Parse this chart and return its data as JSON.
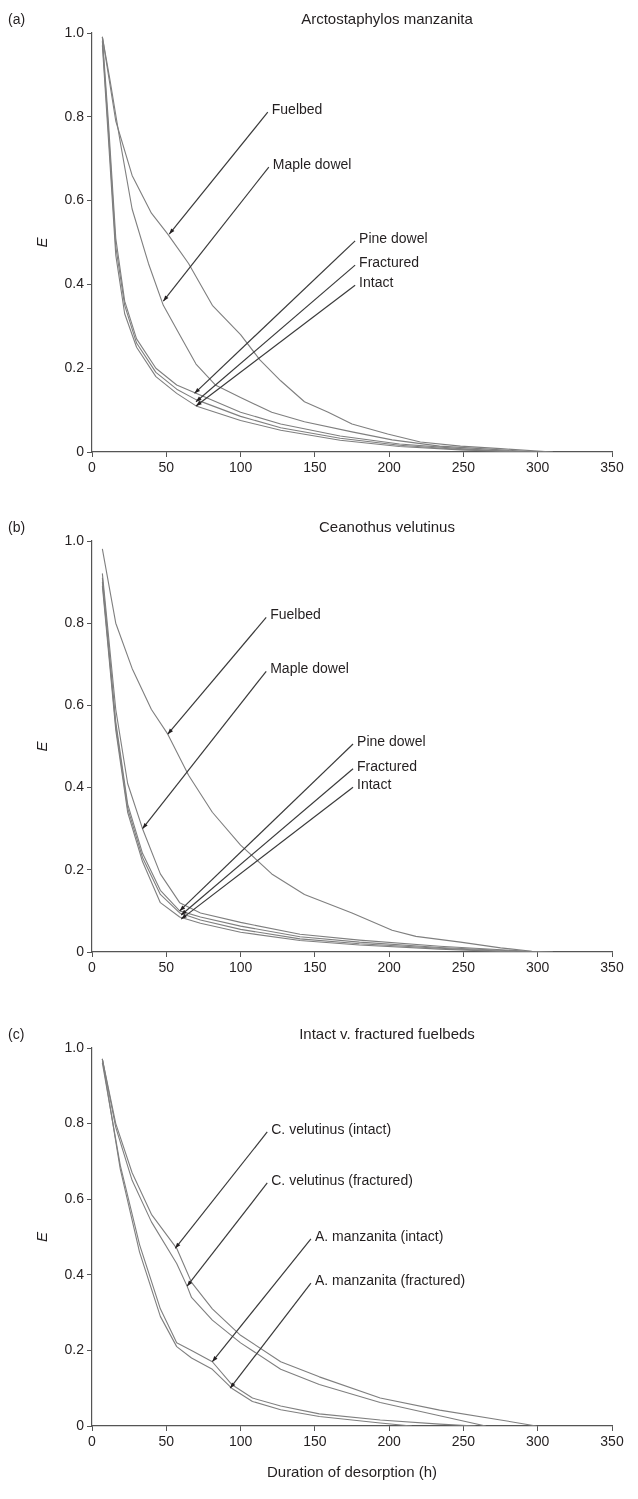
{
  "chart_data": [
    {
      "type": "line",
      "title": "Arctostaphylos manzanita",
      "ylabel": "E",
      "xlim": [
        0,
        350
      ],
      "xticks": [
        0,
        50,
        100,
        150,
        200,
        250,
        300,
        350
      ],
      "ylim": [
        0,
        1
      ],
      "yticks": [
        {
          "value": 0,
          "label": "0"
        },
        {
          "value": 0.2,
          "label": "0.2"
        },
        {
          "value": 0.4,
          "label": "0.4"
        },
        {
          "value": 0.6,
          "label": "0.6"
        },
        {
          "value": 0.8,
          "label": "0.8"
        },
        {
          "value": 1,
          "label": "1.0"
        }
      ],
      "grid": false,
      "legend": false,
      "marker": "none",
      "line_style": "solid",
      "series": [
        {
          "color": "#7f7f7f",
          "x": [
            7,
            16,
            27,
            40,
            51,
            65,
            81,
            100,
            113,
            127,
            143,
            159,
            175,
            199,
            221,
            248,
            275,
            310
          ],
          "values": [
            0.99,
            0.79,
            0.66,
            0.57,
            0.52,
            0.45,
            0.35,
            0.28,
            0.22,
            0.17,
            0.12,
            0.095,
            0.067,
            0.043,
            0.024,
            0.014,
            0.008,
            0
          ]
        },
        {
          "color": "#7f7f7f",
          "x": [
            7,
            12,
            19,
            27,
            38,
            48,
            59,
            70,
            83,
            100,
            121,
            143,
            175,
            202,
            234,
            275,
            302
          ],
          "values": [
            0.99,
            0.89,
            0.74,
            0.58,
            0.45,
            0.35,
            0.28,
            0.21,
            0.16,
            0.13,
            0.095,
            0.072,
            0.048,
            0.029,
            0.014,
            0.005,
            0
          ]
        },
        {
          "color": "#7f7f7f",
          "x": [
            7,
            11,
            16,
            22,
            30,
            43,
            57,
            70,
            100,
            127,
            167,
            207,
            248,
            288
          ],
          "values": [
            0.99,
            0.79,
            0.51,
            0.36,
            0.27,
            0.2,
            0.16,
            0.14,
            0.095,
            0.067,
            0.038,
            0.019,
            0.008,
            0
          ]
        },
        {
          "color": "#7f7f7f",
          "x": [
            7,
            11,
            16,
            22,
            30,
            43,
            57,
            70,
            100,
            127,
            167,
            207,
            248,
            295
          ],
          "values": [
            0.98,
            0.77,
            0.49,
            0.35,
            0.26,
            0.19,
            0.15,
            0.125,
            0.085,
            0.058,
            0.033,
            0.016,
            0.006,
            0
          ]
        },
        {
          "color": "#7f7f7f",
          "x": [
            7,
            11,
            16,
            22,
            30,
            43,
            57,
            70,
            100,
            127,
            167,
            207,
            248,
            290
          ],
          "values": [
            0.97,
            0.75,
            0.47,
            0.33,
            0.25,
            0.18,
            0.14,
            0.11,
            0.075,
            0.052,
            0.028,
            0.013,
            0.005,
            0
          ]
        }
      ],
      "annotations": [
        "(a)",
        {
          "text": "Fuelbed",
          "x": 52,
          "y": 0.52
        },
        {
          "text": "Maple dowel",
          "x": 48,
          "y": 0.36
        },
        {
          "text": "Pine dowel",
          "x": 69,
          "y": 0.14
        },
        {
          "text": "Fractured",
          "x": 70,
          "y": 0.12
        },
        {
          "text": "Intact",
          "x": 70,
          "y": 0.11
        }
      ]
    },
    {
      "type": "line",
      "title": "Ceanothus velutinus",
      "ylabel": "E",
      "xlim": [
        0,
        350
      ],
      "xticks": [
        0,
        50,
        100,
        150,
        200,
        250,
        300,
        350
      ],
      "ylim": [
        0,
        1
      ],
      "yticks": [
        {
          "value": 0,
          "label": "0"
        },
        {
          "value": 0.2,
          "label": "0.2"
        },
        {
          "value": 0.4,
          "label": "0.4"
        },
        {
          "value": 0.6,
          "label": "0.6"
        },
        {
          "value": 0.8,
          "label": "0.8"
        },
        {
          "value": 1,
          "label": "1.0"
        }
      ],
      "grid": false,
      "legend": false,
      "marker": "none",
      "line_style": "solid",
      "series": [
        {
          "color": "#7f7f7f",
          "x": [
            7,
            16,
            27,
            40,
            51,
            65,
            81,
            100,
            121,
            143,
            175,
            202,
            218,
            248,
            275,
            296,
            310
          ],
          "values": [
            0.98,
            0.8,
            0.69,
            0.59,
            0.53,
            0.43,
            0.34,
            0.26,
            0.19,
            0.14,
            0.095,
            0.053,
            0.038,
            0.024,
            0.01,
            0.002,
            0
          ]
        },
        {
          "color": "#7f7f7f",
          "x": [
            7,
            16,
            24,
            34,
            46,
            59,
            73,
            100,
            140,
            180,
            234,
            288,
            302
          ],
          "values": [
            0.92,
            0.59,
            0.41,
            0.3,
            0.19,
            0.12,
            0.095,
            0.072,
            0.043,
            0.029,
            0.014,
            0.003,
            0
          ]
        },
        {
          "color": "#7f7f7f",
          "x": [
            7,
            16,
            24,
            34,
            46,
            59,
            73,
            100,
            140,
            180,
            234,
            288,
            300
          ],
          "values": [
            0.91,
            0.56,
            0.36,
            0.24,
            0.15,
            0.1,
            0.085,
            0.063,
            0.037,
            0.024,
            0.011,
            0.002,
            0
          ]
        },
        {
          "color": "#7f7f7f",
          "x": [
            7,
            16,
            24,
            34,
            46,
            59,
            73,
            100,
            140,
            180,
            234,
            290
          ],
          "values": [
            0.9,
            0.55,
            0.35,
            0.23,
            0.14,
            0.095,
            0.078,
            0.055,
            0.032,
            0.02,
            0.009,
            0
          ]
        },
        {
          "color": "#7f7f7f",
          "x": [
            7,
            16,
            24,
            34,
            46,
            59,
            73,
            100,
            140,
            180,
            234,
            285
          ],
          "values": [
            0.89,
            0.54,
            0.34,
            0.22,
            0.12,
            0.085,
            0.07,
            0.048,
            0.028,
            0.017,
            0.007,
            0
          ]
        }
      ],
      "annotations": [
        "(b)",
        {
          "text": "Fuelbed",
          "x": 51,
          "y": 0.53
        },
        {
          "text": "Maple dowel",
          "x": 34,
          "y": 0.3
        },
        {
          "text": "Pine dowel",
          "x": 59,
          "y": 0.1
        },
        {
          "text": "Fractured",
          "x": 60,
          "y": 0.09
        },
        {
          "text": "Intact",
          "x": 60,
          "y": 0.08
        }
      ]
    },
    {
      "type": "line",
      "title": "Intact v. fractured fuelbeds",
      "xlabel": "Duration of desorption (h)",
      "ylabel": "E",
      "xlim": [
        0,
        350
      ],
      "xticks": [
        0,
        50,
        100,
        150,
        200,
        250,
        300,
        350
      ],
      "ylim": [
        0,
        1
      ],
      "yticks": [
        {
          "value": 0,
          "label": "0"
        },
        {
          "value": 0.2,
          "label": "0.2"
        },
        {
          "value": 0.4,
          "label": "0.4"
        },
        {
          "value": 0.6,
          "label": "0.6"
        },
        {
          "value": 0.8,
          "label": "0.8"
        },
        {
          "value": 1,
          "label": "1.0"
        }
      ],
      "grid": false,
      "legend": false,
      "marker": "none",
      "line_style": "solid",
      "series": [
        {
          "color": "#7f7f7f",
          "x": [
            7,
            16,
            27,
            40,
            57,
            67,
            81,
            100,
            127,
            153,
            194,
            234,
            275,
            299
          ],
          "values": [
            0.97,
            0.8,
            0.67,
            0.56,
            0.47,
            0.38,
            0.31,
            0.24,
            0.17,
            0.13,
            0.074,
            0.042,
            0.016,
            0
          ]
        },
        {
          "color": "#7f7f7f",
          "x": [
            7,
            16,
            27,
            40,
            57,
            64,
            67,
            81,
            100,
            127,
            153,
            194,
            234,
            265
          ],
          "values": [
            0.97,
            0.79,
            0.65,
            0.54,
            0.43,
            0.37,
            0.34,
            0.28,
            0.22,
            0.15,
            0.11,
            0.062,
            0.027,
            0
          ]
        },
        {
          "color": "#7f7f7f",
          "x": [
            7,
            19,
            32,
            46,
            57,
            67,
            81,
            94,
            108,
            127,
            153,
            194,
            234,
            258
          ],
          "values": [
            0.96,
            0.69,
            0.48,
            0.31,
            0.22,
            0.2,
            0.17,
            0.11,
            0.074,
            0.053,
            0.032,
            0.016,
            0.005,
            0
          ]
        },
        {
          "color": "#7f7f7f",
          "x": [
            7,
            19,
            32,
            46,
            57,
            67,
            81,
            94,
            108,
            127,
            153,
            194,
            215
          ],
          "values": [
            0.97,
            0.68,
            0.46,
            0.29,
            0.21,
            0.18,
            0.15,
            0.1,
            0.065,
            0.043,
            0.025,
            0.008,
            0
          ]
        }
      ],
      "annotations": [
        "(c)",
        {
          "text": "C. velutinus (intact)",
          "x": 56,
          "y": 0.47
        },
        {
          "text": "C. velutinus (fractured)",
          "x": 64,
          "y": 0.37
        },
        {
          "text": "A. manzanita (intact)",
          "x": 81,
          "y": 0.17
        },
        {
          "text": "A. manzanita (fractured)",
          "x": 93,
          "y": 0.1
        }
      ]
    }
  ]
}
